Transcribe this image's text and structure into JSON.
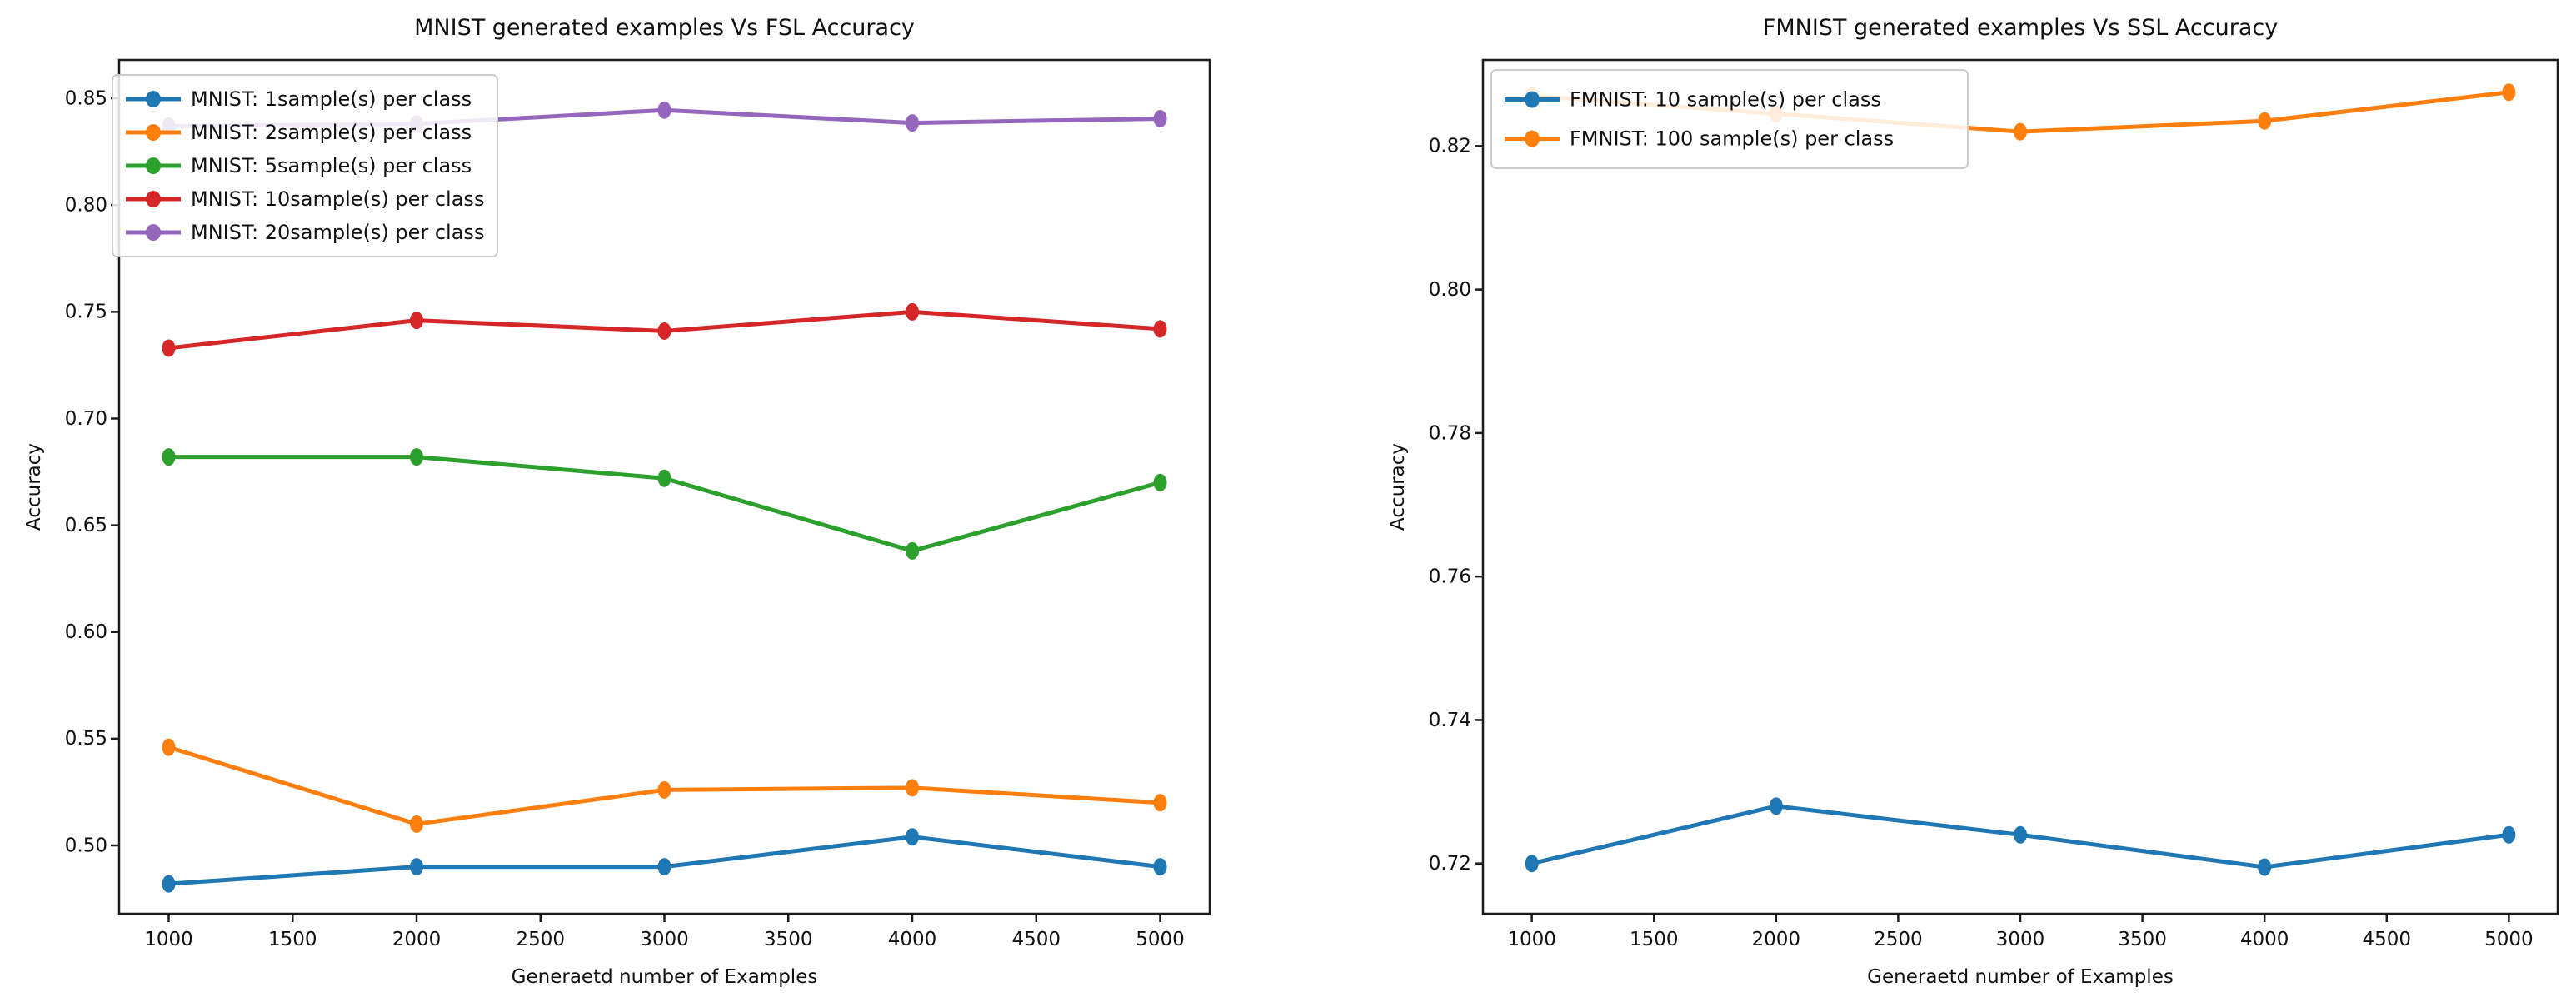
{
  "figure": {
    "background": "#ffffff",
    "text_color": "#111111",
    "spine_color": "#1c1c1c",
    "legend_border_color": "#cccccc"
  },
  "chart_data": [
    {
      "type": "line",
      "title": "MNIST generated examples  Vs FSL Accuracy",
      "xlabel": "Generaetd number of Examples",
      "ylabel": "Accuracy",
      "x": [
        1000,
        2000,
        3000,
        4000,
        5000
      ],
      "series": [
        {
          "name": "MNIST: 1sample(s) per class",
          "color": "#1f77b4",
          "values": [
            0.482,
            0.49,
            0.49,
            0.504,
            0.49
          ]
        },
        {
          "name": "MNIST: 2sample(s) per class",
          "color": "#ff7f0e",
          "values": [
            0.546,
            0.51,
            0.526,
            0.527,
            0.52
          ]
        },
        {
          "name": "MNIST: 5sample(s) per class",
          "color": "#2ca02c",
          "values": [
            0.682,
            0.682,
            0.672,
            0.638,
            0.67
          ]
        },
        {
          "name": "MNIST: 10sample(s) per class",
          "color": "#d62728",
          "values": [
            0.733,
            0.746,
            0.741,
            0.75,
            0.742
          ]
        },
        {
          "name": "MNIST: 20sample(s) per class",
          "color": "#9467bd",
          "values": [
            0.837,
            0.838,
            0.8445,
            0.8385,
            0.8405
          ]
        }
      ],
      "xticks": [
        1000,
        1500,
        2000,
        2500,
        3000,
        3500,
        4000,
        4500,
        5000
      ],
      "ytick_labels": [
        "0.50",
        "0.55",
        "0.60",
        "0.65",
        "0.70",
        "0.75",
        "0.80",
        "0.85"
      ],
      "xlim": [
        800,
        5200
      ],
      "ylim": [
        0.468,
        0.868
      ],
      "grid": false,
      "legend_position": "upper left"
    },
    {
      "type": "line",
      "title": "FMNIST generated examples  Vs SSL Accuracy",
      "xlabel": "Generaetd number of Examples",
      "ylabel": "Accuracy",
      "x": [
        1000,
        2000,
        3000,
        4000,
        5000
      ],
      "series": [
        {
          "name": "FMNIST: 10 sample(s) per class",
          "color": "#1f77b4",
          "values": [
            0.72,
            0.728,
            0.724,
            0.7195,
            0.724
          ]
        },
        {
          "name": "FMNIST: 100 sample(s) per class",
          "color": "#ff7f0e",
          "values": [
            0.827,
            0.8245,
            0.822,
            0.8235,
            0.8275
          ]
        }
      ],
      "xticks": [
        1000,
        1500,
        2000,
        2500,
        3000,
        3500,
        4000,
        4500,
        5000
      ],
      "ytick_labels": [
        "0.72",
        "0.74",
        "0.76",
        "0.78",
        "0.80",
        "0.82"
      ],
      "xlim": [
        800,
        5200
      ],
      "ylim": [
        0.713,
        0.832
      ],
      "grid": false,
      "legend_position": "upper left"
    }
  ]
}
